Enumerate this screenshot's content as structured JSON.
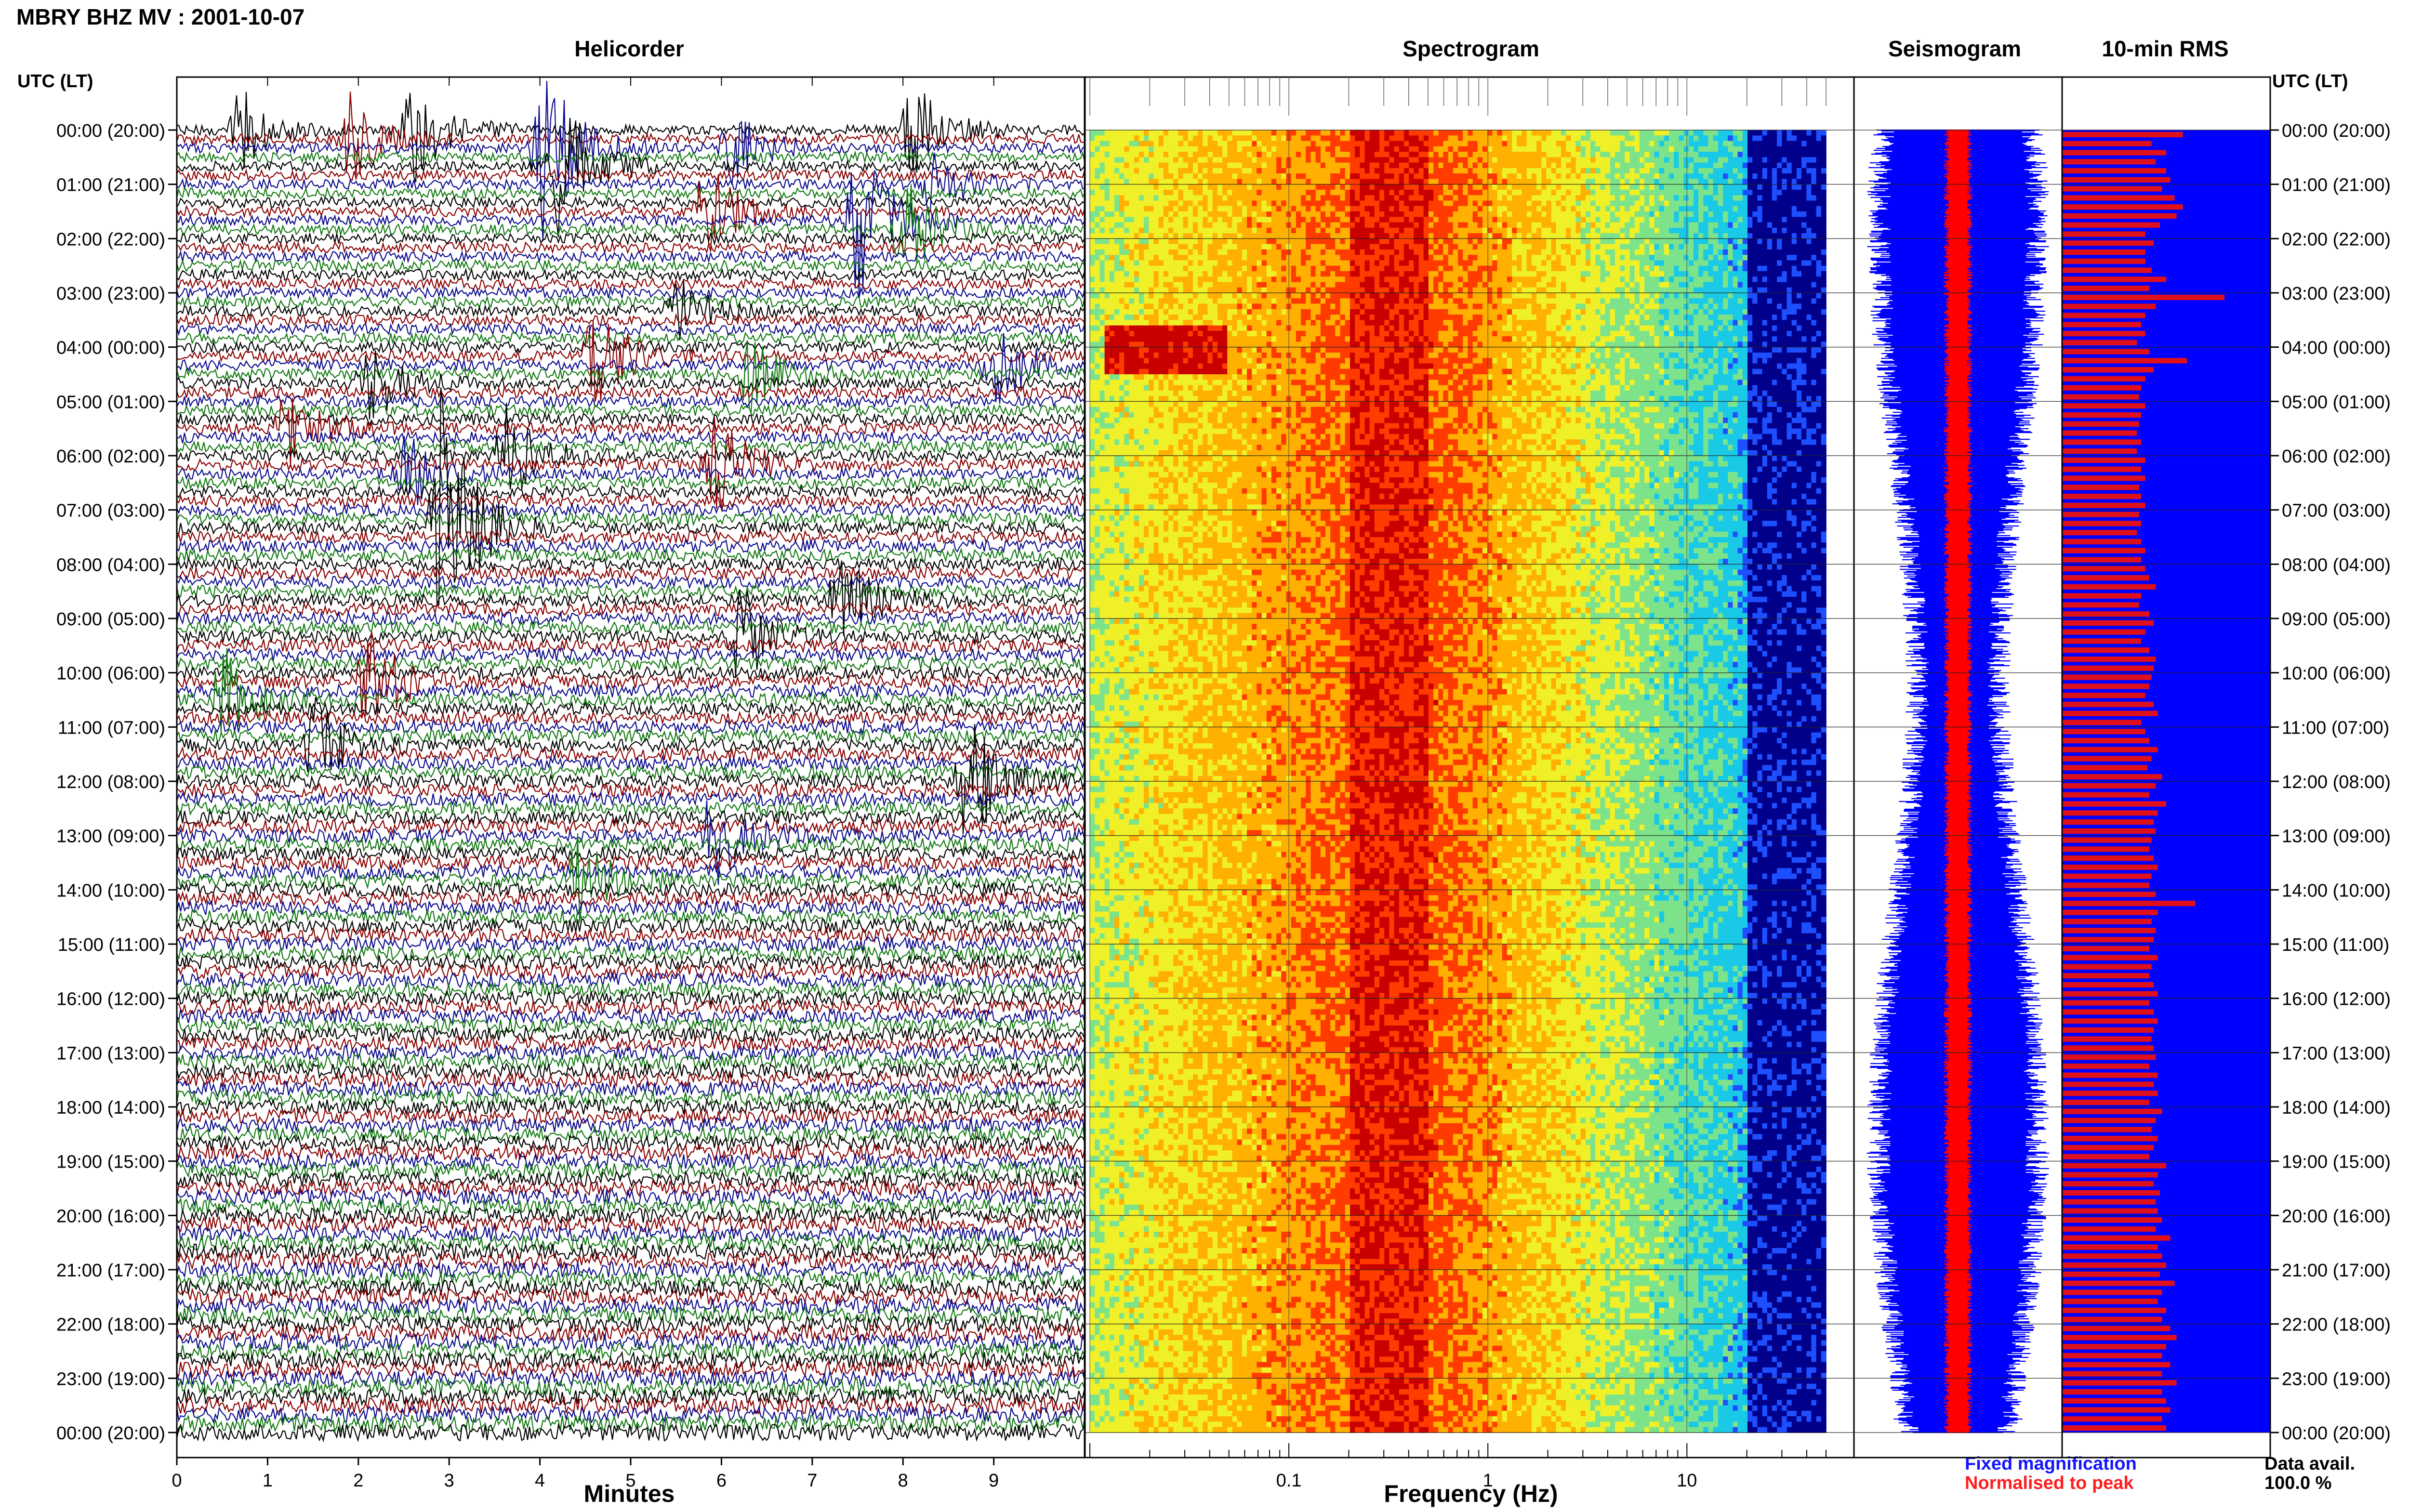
{
  "header": {
    "title": "MBRY BHZ MV : 2001-10-07"
  },
  "panels": {
    "helicorder": "Helicorder",
    "spectrogram": "Spectrogram",
    "seismogram": "Seismogram",
    "rms": "10-min RMS"
  },
  "axes": {
    "utc_left_header": "UTC (LT)",
    "utc_right_header": "UTC (LT)",
    "helicorder_xlabel": "Minutes",
    "spectrogram_xlabel": "Frequency (Hz)"
  },
  "legend": {
    "fixed": "Fixed magnification",
    "normalised": "Normalised to peak"
  },
  "data_availability": {
    "label": "Data avail.",
    "value": "100.0 %"
  },
  "colors": {
    "helicorder_traces": [
      "#000000",
      "#8b0000",
      "#0a0a8c",
      "#117a11"
    ],
    "seismogram_fixed": "#0000ff",
    "seismogram_normalised": "#ff0000",
    "rms_bar": "#e0101a",
    "rms_background": "#0000ff",
    "legend_fixed": "#1414ff",
    "legend_normalised": "#ff1e1e"
  },
  "chart_data": [
    {
      "type": "line",
      "title": "Helicorder",
      "xlabel": "Minutes",
      "ylabel": "UTC (LT)",
      "x_ticks": [
        "0",
        "1",
        "2",
        "3",
        "4",
        "5",
        "6",
        "7",
        "8",
        "9"
      ],
      "xlim": [
        0,
        10
      ],
      "y_ticks": [
        "00:00 (20:00)",
        "01:00 (21:00)",
        "02:00 (22:00)",
        "03:00 (23:00)",
        "04:00 (00:00)",
        "05:00 (01:00)",
        "06:00 (02:00)",
        "07:00 (03:00)",
        "08:00 (04:00)",
        "09:00 (05:00)",
        "10:00 (06:00)",
        "11:00 (07:00)",
        "12:00 (08:00)",
        "13:00 (09:00)",
        "14:00 (10:00)",
        "15:00 (11:00)",
        "16:00 (12:00)",
        "17:00 (13:00)",
        "18:00 (14:00)",
        "19:00 (15:00)",
        "20:00 (16:00)",
        "21:00 (17:00)",
        "22:00 (18:00)",
        "23:00 (19:00)",
        "00:00 (20:00)"
      ],
      "rows_per_hour": 6,
      "events": [
        {
          "row": 0,
          "minute": 0.7,
          "amp": 1.4
        },
        {
          "row": 0,
          "minute": 2.6,
          "amp": 1.8
        },
        {
          "row": 0,
          "minute": 8.1,
          "amp": 1.6
        },
        {
          "row": 1,
          "minute": 1.9,
          "amp": 1.5
        },
        {
          "row": 2,
          "minute": 4.0,
          "amp": 3.5
        },
        {
          "row": 2,
          "minute": 6.1,
          "amp": 1.5
        },
        {
          "row": 4,
          "minute": 4.2,
          "amp": 2.6
        },
        {
          "row": 6,
          "minute": 8.3,
          "amp": 1.2
        },
        {
          "row": 9,
          "minute": 5.8,
          "amp": 1.8
        },
        {
          "row": 10,
          "minute": 7.5,
          "amp": 2.8
        },
        {
          "row": 11,
          "minute": 8.0,
          "amp": 1.8
        },
        {
          "row": 20,
          "minute": 5.5,
          "amp": 1.0
        },
        {
          "row": 25,
          "minute": 4.6,
          "amp": 1.6
        },
        {
          "row": 26,
          "minute": 9.0,
          "amp": 1.4
        },
        {
          "row": 27,
          "minute": 6.3,
          "amp": 1.2
        },
        {
          "row": 28,
          "minute": 2.1,
          "amp": 1.3
        },
        {
          "row": 33,
          "minute": 1.2,
          "amp": 1.2
        },
        {
          "row": 36,
          "minute": 3.6,
          "amp": 1.5
        },
        {
          "row": 37,
          "minute": 5.9,
          "amp": 1.6
        },
        {
          "row": 38,
          "minute": 2.5,
          "amp": 1.3
        },
        {
          "row": 44,
          "minute": 2.9,
          "amp": 4.0
        },
        {
          "row": 52,
          "minute": 7.3,
          "amp": 1.3
        },
        {
          "row": 56,
          "minute": 6.2,
          "amp": 1.4
        },
        {
          "row": 61,
          "minute": 2.1,
          "amp": 1.4
        },
        {
          "row": 63,
          "minute": 0.5,
          "amp": 1.4
        },
        {
          "row": 68,
          "minute": 1.5,
          "amp": 1.2
        },
        {
          "row": 72,
          "minute": 8.7,
          "amp": 2.0
        },
        {
          "row": 78,
          "minute": 5.9,
          "amp": 1.3
        },
        {
          "row": 83,
          "minute": 4.4,
          "amp": 1.1
        }
      ]
    },
    {
      "type": "heatmap",
      "title": "Spectrogram",
      "xlabel": "Frequency (Hz)",
      "x_scale": "log",
      "xlim": [
        0.01,
        50
      ],
      "x_ticks": [
        "0.1",
        "1",
        "10"
      ],
      "peak_band_hz": [
        0.2,
        0.5
      ],
      "low_freq_event": {
        "utc": "04:00",
        "freq_hz": [
          0.012,
          0.05
        ]
      },
      "colormap": [
        "#00008b",
        "#1e4fff",
        "#19c9e6",
        "#7de38a",
        "#f0f028",
        "#ffb000",
        "#ff3b00",
        "#c80000"
      ]
    },
    {
      "type": "line",
      "title": "Seismogram",
      "series": [
        {
          "name": "Fixed magnification",
          "color": "#0000ff"
        },
        {
          "name": "Normalised to peak",
          "color": "#ff0000"
        }
      ]
    },
    {
      "type": "bar",
      "title": "10-min RMS",
      "orientation": "horizontal",
      "interval_minutes": 10,
      "values": [
        0.58,
        0.43,
        0.5,
        0.45,
        0.5,
        0.52,
        0.48,
        0.54,
        0.58,
        0.55,
        0.47,
        0.4,
        0.44,
        0.4,
        0.4,
        0.43,
        0.5,
        0.42,
        0.78,
        0.45,
        0.4,
        0.38,
        0.4,
        0.36,
        0.42,
        0.6,
        0.44,
        0.4,
        0.38,
        0.37,
        0.4,
        0.38,
        0.37,
        0.36,
        0.38,
        0.36,
        0.4,
        0.38,
        0.4,
        0.37,
        0.38,
        0.4,
        0.37,
        0.38,
        0.36,
        0.38,
        0.4,
        0.38,
        0.4,
        0.42,
        0.45,
        0.38,
        0.37,
        0.42,
        0.44,
        0.4,
        0.38,
        0.42,
        0.45,
        0.44,
        0.43,
        0.42,
        0.4,
        0.44,
        0.46,
        0.38,
        0.4,
        0.42,
        0.46,
        0.43,
        0.41,
        0.48,
        0.45,
        0.42,
        0.5,
        0.46,
        0.44,
        0.45,
        0.43,
        0.42,
        0.44,
        0.46,
        0.43,
        0.42,
        0.45,
        0.64,
        0.46,
        0.43,
        0.45,
        0.44,
        0.42,
        0.46,
        0.43,
        0.42,
        0.44,
        0.46,
        0.42,
        0.44,
        0.46,
        0.44,
        0.43,
        0.44,
        0.45,
        0.42,
        0.46,
        0.44,
        0.46,
        0.42,
        0.48,
        0.45,
        0.43,
        0.46,
        0.44,
        0.42,
        0.5,
        0.46,
        0.44,
        0.47,
        0.45,
        0.46,
        0.48,
        0.45,
        0.52,
        0.46,
        0.48,
        0.5,
        0.47,
        0.54,
        0.48,
        0.46,
        0.5,
        0.48,
        0.52,
        0.55,
        0.5,
        0.48,
        0.52,
        0.48,
        0.55,
        0.48,
        0.5,
        0.52,
        0.48,
        0.5
      ]
    }
  ]
}
